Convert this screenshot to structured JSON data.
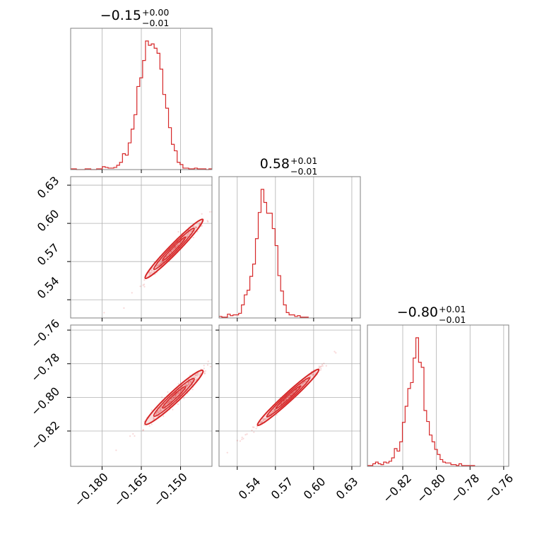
{
  "chart_data": {
    "type": "corner",
    "color": "#d62728",
    "grid": true,
    "parameters": [
      {
        "title": {
          "value": "−0.15",
          "plus": "+0.00",
          "minus": "−0.01"
        },
        "range": [
          -0.192,
          -0.138
        ],
        "ticks": [
          -0.18,
          -0.165,
          -0.15
        ],
        "tick_labels": [
          "−0.180",
          "−0.165",
          "−0.150"
        ]
      },
      {
        "title": {
          "value": "0.58",
          "plus": "+0.01",
          "minus": "−0.01"
        },
        "range": [
          0.5257,
          0.6367
        ],
        "ticks": [
          0.54,
          0.57,
          0.6,
          0.63
        ],
        "tick_labels": [
          "0.54",
          "0.57",
          "0.60",
          "0.63"
        ]
      },
      {
        "title": {
          "value": "−0.80",
          "plus": "+0.01",
          "minus": "−0.01"
        },
        "range": [
          -0.841,
          -0.757
        ],
        "ticks": [
          -0.82,
          -0.8,
          -0.78,
          -0.76
        ],
        "tick_labels": [
          "−0.82",
          "−0.80",
          "−0.78",
          "−0.76"
        ]
      }
    ],
    "histograms": [
      {
        "parameter": 0,
        "bin_start": -0.192,
        "bin_width": 0.0011,
        "counts": [
          1,
          1,
          0,
          0,
          0,
          1,
          1,
          0,
          0,
          1,
          1,
          4,
          3,
          2,
          2,
          3,
          6,
          10,
          22,
          20,
          37,
          56,
          76,
          115,
          127,
          151,
          178,
          172,
          174,
          168,
          161,
          139,
          104,
          85,
          58,
          35,
          26,
          10,
          7,
          2,
          2,
          1,
          1,
          2,
          1,
          1,
          1,
          0,
          1
        ]
      },
      {
        "parameter": 1,
        "bin_start": 0.5257,
        "bin_width": 0.0022,
        "counts": [
          2,
          1,
          1,
          5,
          3,
          4,
          4,
          6,
          17,
          30,
          36,
          54,
          70,
          103,
          137,
          167,
          150,
          136,
          136,
          116,
          94,
          55,
          35,
          17,
          7,
          4,
          4,
          2,
          3,
          1,
          1,
          1
        ]
      },
      {
        "parameter": 2,
        "bin_start": -0.841,
        "bin_width": 0.0016,
        "counts": [
          1,
          1,
          3,
          5,
          3,
          2,
          5,
          4,
          6,
          10,
          21,
          18,
          29,
          52,
          71,
          92,
          99,
          128,
          152,
          123,
          117,
          66,
          53,
          37,
          29,
          20,
          14,
          8,
          5,
          4,
          4,
          2,
          2,
          1,
          3,
          1,
          1,
          1,
          1,
          1
        ]
      }
    ],
    "correlations": [
      {
        "x_parameter": 0,
        "y_parameter": 1,
        "relation": "y = 0.58 + 2.1*(x + 0.1525)",
        "scatter_points": 300,
        "contour_levels": 3
      },
      {
        "x_parameter": 0,
        "y_parameter": 2,
        "relation": "y = -0.80 + 1.45*(x + 0.1525)",
        "scatter_points": 300,
        "contour_levels": 3
      },
      {
        "x_parameter": 1,
        "y_parameter": 2,
        "relation": "y = -0.80 + 0.69*(x - 0.58)",
        "scatter_points": 300,
        "contour_levels": 3
      }
    ]
  }
}
